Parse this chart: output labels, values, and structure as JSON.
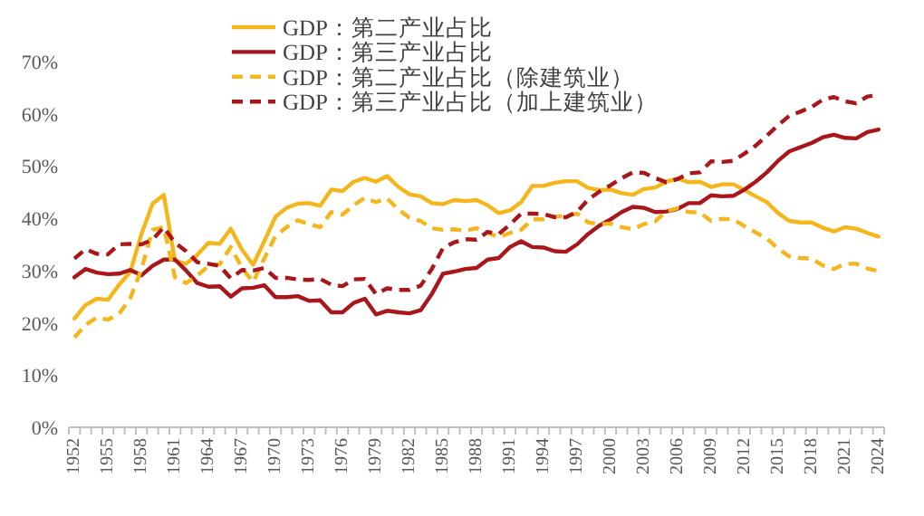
{
  "chart_data": {
    "type": "line",
    "categories": [
      "1952",
      null,
      null,
      "1955",
      null,
      null,
      "1958",
      null,
      null,
      "1961",
      null,
      null,
      "1964",
      null,
      null,
      "1967",
      null,
      null,
      "1970",
      null,
      null,
      "1973",
      null,
      null,
      "1976",
      null,
      null,
      "1979",
      null,
      null,
      "1982",
      null,
      null,
      "1985",
      null,
      null,
      "1988",
      null,
      null,
      "1991",
      null,
      null,
      "1994",
      null,
      null,
      "1997",
      null,
      null,
      "2000",
      null,
      null,
      "2003",
      null,
      null,
      "2006",
      null,
      null,
      "2009",
      null,
      null,
      "2012",
      null,
      null,
      "2015",
      null,
      null,
      "2018",
      null,
      null,
      "2021",
      null,
      null,
      "2024"
    ],
    "series": [
      {
        "name": "GDP：第二产业占比",
        "color": "#f4b61a",
        "line_style": "solid",
        "values": [
          20.8,
          23.4,
          24.6,
          24.4,
          27.3,
          29.7,
          37.0,
          42.8,
          44.5,
          31.9,
          31.3,
          33.0,
          35.3,
          35.1,
          38.0,
          34.0,
          31.1,
          35.6,
          40.3,
          42.0,
          42.8,
          42.9,
          42.4,
          45.5,
          45.2,
          47.0,
          47.7,
          47.0,
          48.1,
          46.0,
          44.6,
          44.2,
          42.9,
          42.7,
          43.5,
          43.3,
          43.5,
          42.5,
          41.0,
          41.5,
          43.1,
          46.2,
          46.2,
          46.8,
          47.1,
          47.1,
          45.8,
          45.4,
          45.5,
          44.8,
          44.5,
          45.6,
          45.9,
          47.0,
          47.6,
          46.9,
          47.0,
          46.0,
          46.5,
          46.5,
          45.4,
          44.2,
          43.1,
          41.0,
          39.5,
          39.2,
          39.2,
          38.2,
          37.5,
          38.3,
          38.0,
          37.2,
          36.5
        ]
      },
      {
        "name": "GDP：第三产业占比",
        "color": "#a9171c",
        "line_style": "solid",
        "values": [
          28.7,
          30.3,
          29.6,
          29.3,
          29.4,
          30.1,
          29.1,
          30.9,
          32.1,
          32.1,
          30.0,
          27.6,
          26.9,
          27.0,
          25.0,
          26.6,
          26.7,
          27.2,
          24.9,
          24.9,
          25.1,
          24.2,
          24.3,
          22.0,
          22.0,
          23.8,
          24.6,
          21.6,
          22.3,
          22.0,
          21.8,
          22.4,
          25.5,
          29.4,
          29.8,
          30.3,
          30.5,
          32.1,
          32.4,
          34.5,
          35.6,
          34.5,
          34.4,
          33.7,
          33.6,
          35.0,
          37.0,
          38.6,
          39.8,
          41.2,
          42.2,
          42.0,
          41.2,
          41.3,
          41.8,
          42.9,
          42.9,
          44.4,
          44.2,
          44.3,
          45.5,
          47.0,
          48.8,
          51.0,
          52.8,
          53.6,
          54.4,
          55.5,
          56.0,
          55.4,
          55.3,
          56.5,
          57.0
        ]
      },
      {
        "name": "GDP：第二产业占比（除建筑业）",
        "color": "#f4b61a",
        "line_style": "dashed",
        "values": [
          17.2,
          19.6,
          21.0,
          20.6,
          21.7,
          24.7,
          30.3,
          37.8,
          38.3,
          28.7,
          27.6,
          29.0,
          30.9,
          31.2,
          34.5,
          30.5,
          27.8,
          32.3,
          36.6,
          38.3,
          39.6,
          38.9,
          38.3,
          41.2,
          40.7,
          42.5,
          43.9,
          43.1,
          43.8,
          41.7,
          40.1,
          39.5,
          38.1,
          37.8,
          37.9,
          37.6,
          38.1,
          37.2,
          36.4,
          37.2,
          37.8,
          39.8,
          39.8,
          40.3,
          40.5,
          40.9,
          39.2,
          38.9,
          39.0,
          38.3,
          37.9,
          38.9,
          39.4,
          41.4,
          41.9,
          41.2,
          41.1,
          39.5,
          39.9,
          39.8,
          38.5,
          37.3,
          36.1,
          34.2,
          32.7,
          32.4,
          32.3,
          31.0,
          30.3,
          31.3,
          31.3,
          30.4,
          29.9
        ]
      },
      {
        "name": "GDP：第三产业占比（加上建筑业）",
        "color": "#a9171c",
        "line_style": "dashed",
        "values": [
          32.3,
          34.1,
          33.2,
          33.1,
          35.0,
          35.1,
          35.0,
          35.9,
          38.3,
          35.3,
          33.7,
          31.6,
          31.3,
          30.9,
          28.5,
          30.1,
          30.0,
          30.5,
          28.6,
          28.6,
          28.3,
          28.2,
          28.4,
          27.3,
          27.0,
          28.3,
          28.4,
          25.5,
          26.6,
          26.3,
          26.3,
          27.1,
          30.3,
          34.3,
          35.4,
          36.0,
          35.9,
          37.4,
          37.0,
          38.8,
          40.9,
          40.9,
          40.8,
          40.2,
          40.2,
          41.2,
          43.6,
          45.1,
          46.3,
          47.7,
          48.8,
          48.7,
          47.7,
          46.9,
          47.5,
          48.6,
          48.8,
          50.9,
          50.8,
          51.0,
          52.4,
          53.9,
          55.8,
          57.8,
          59.6,
          60.4,
          61.3,
          62.7,
          63.2,
          62.4,
          62.0,
          63.3,
          63.6
        ]
      }
    ],
    "ylim": [
      0,
      70
    ],
    "yticks": [
      {
        "value": 0,
        "label": "0%"
      },
      {
        "value": 10,
        "label": "10%"
      },
      {
        "value": 20,
        "label": "20%"
      },
      {
        "value": 30,
        "label": "30%"
      },
      {
        "value": 40,
        "label": "40%"
      },
      {
        "value": 50,
        "label": "50%"
      },
      {
        "value": 60,
        "label": "60%"
      },
      {
        "value": 70,
        "label": "70%"
      }
    ],
    "grid": false,
    "legend": "top"
  }
}
